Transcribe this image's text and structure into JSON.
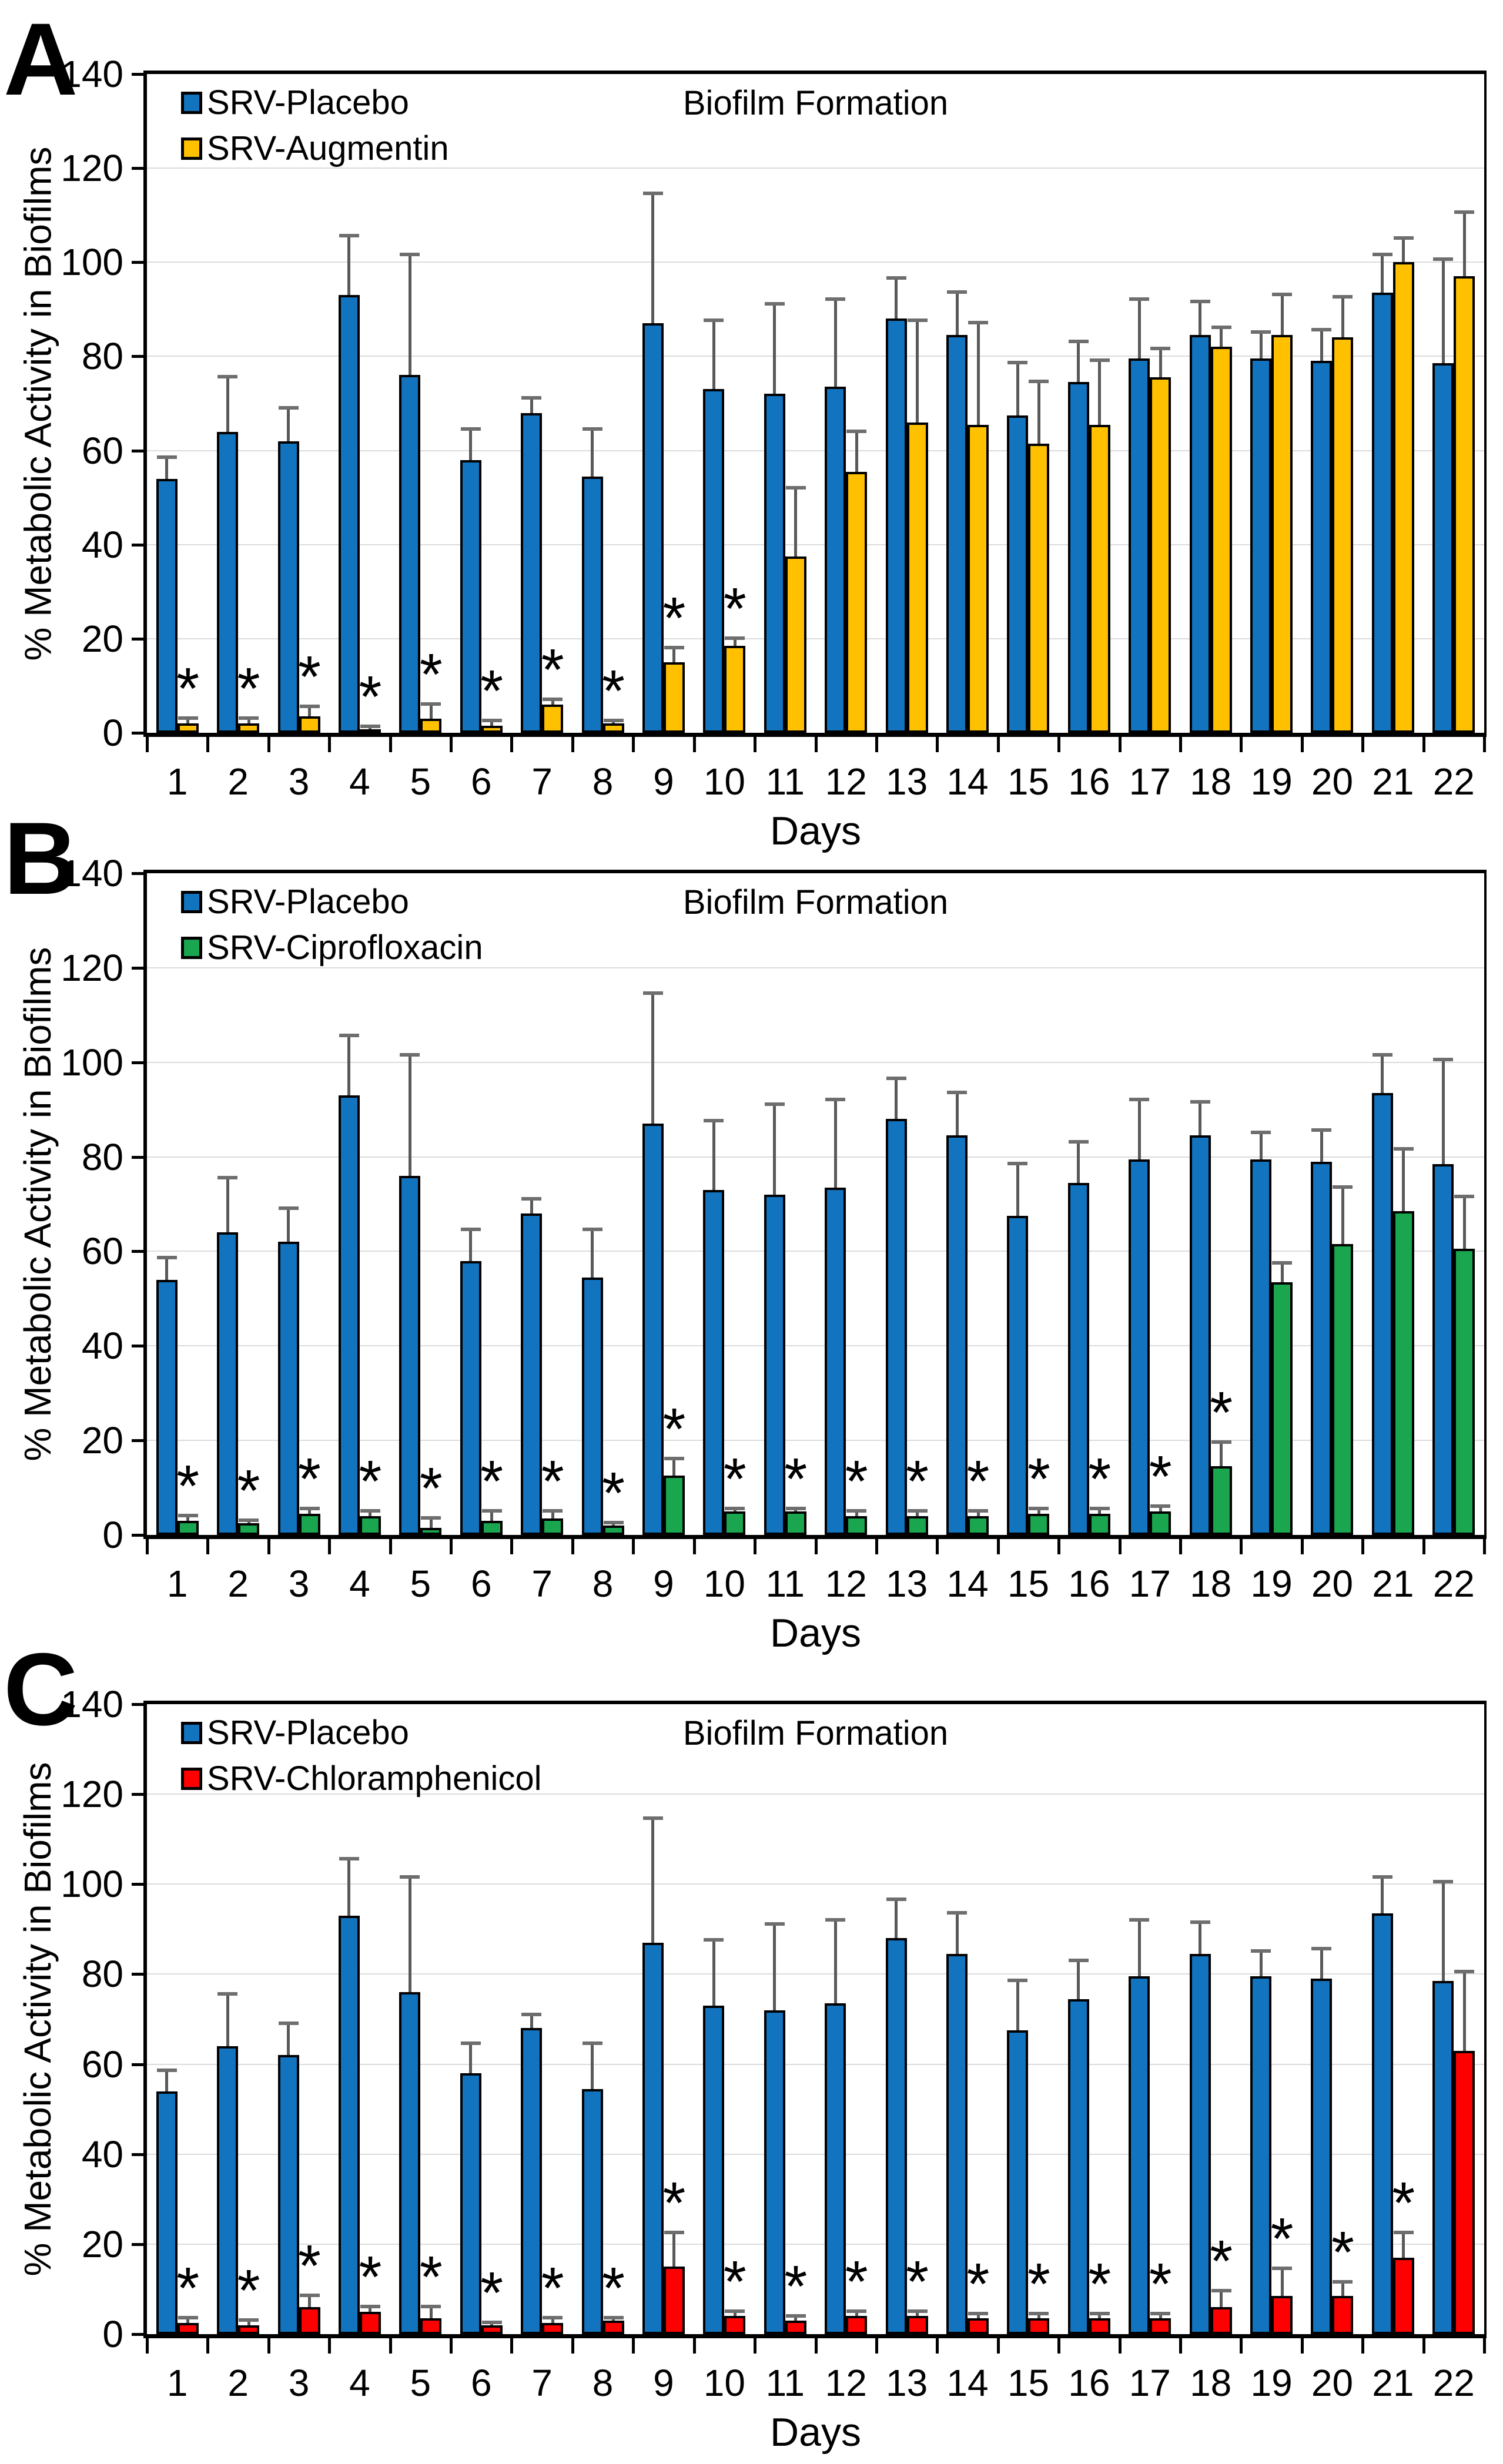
{
  "figure": {
    "panel_letters": [
      "A",
      "B",
      "C"
    ],
    "significance_marker": "*",
    "colors": {
      "placebo_blue": "#1273BE",
      "augmentin_yellow": "#FFC000",
      "ciprofloxacin_green": "#19A64F",
      "chloramphenicol_red": "#FE0000",
      "error_bar": "#595959",
      "gridline": "#DCDCDC",
      "axis": "#000000"
    }
  },
  "chart_data": [
    {
      "panel": "A",
      "type": "bar",
      "title": "Biofilm Formation",
      "xlabel": "Days",
      "ylabel": "% Metabolic Activity in Biofilms",
      "ylim": [
        0,
        140
      ],
      "ytick_step": 20,
      "grid": true,
      "legend_position": "top-left",
      "categories": [
        "1",
        "2",
        "3",
        "4",
        "5",
        "6",
        "7",
        "8",
        "9",
        "10",
        "11",
        "12",
        "13",
        "14",
        "15",
        "16",
        "17",
        "18",
        "19",
        "20",
        "21",
        "22"
      ],
      "series": [
        {
          "name": "SRV-Placebo",
          "color": "#1273BE",
          "values": [
            54,
            64,
            62,
            93,
            76,
            58,
            68,
            54.5,
            87,
            73,
            72,
            73.5,
            88,
            84.5,
            67.5,
            74.5,
            79.5,
            84.5,
            79.5,
            79,
            93.5,
            78.5
          ],
          "errors_plus": [
            5,
            12,
            7.5,
            13,
            26,
            7,
            3.5,
            10.5,
            28,
            15,
            19.5,
            19,
            9,
            9.5,
            11.5,
            9,
            13,
            7.5,
            6,
            7,
            8.5,
            22.5
          ],
          "significant_days": []
        },
        {
          "name": "SRV-Augmentin",
          "color": "#FFC000",
          "values": [
            2,
            2,
            3.5,
            0.7,
            3,
            1.5,
            6,
            2,
            15,
            18.5,
            37.5,
            55.5,
            66,
            65.5,
            61.5,
            65.5,
            75.5,
            82,
            84.5,
            84,
            100,
            97
          ],
          "errors_plus": [
            1.5,
            1.5,
            2.5,
            1,
            3.5,
            1.5,
            1.5,
            1,
            3.5,
            2,
            15,
            9,
            22,
            22,
            13.5,
            14,
            6.5,
            4.5,
            9,
            9,
            5.5,
            14
          ],
          "significant_days": [
            1,
            2,
            3,
            4,
            5,
            6,
            7,
            8,
            9,
            10
          ]
        }
      ]
    },
    {
      "panel": "B",
      "type": "bar",
      "title": "Biofilm Formation",
      "xlabel": "Days",
      "ylabel": "% Metabolic Activity in Biofilms",
      "ylim": [
        0,
        140
      ],
      "ytick_step": 20,
      "grid": true,
      "legend_position": "top-left",
      "categories": [
        "1",
        "2",
        "3",
        "4",
        "5",
        "6",
        "7",
        "8",
        "9",
        "10",
        "11",
        "12",
        "13",
        "14",
        "15",
        "16",
        "17",
        "18",
        "19",
        "20",
        "21",
        "22"
      ],
      "series": [
        {
          "name": "SRV-Placebo",
          "color": "#1273BE",
          "values": [
            54,
            64,
            62,
            93,
            76,
            58,
            68,
            54.5,
            87,
            73,
            72,
            73.5,
            88,
            84.5,
            67.5,
            74.5,
            79.5,
            84.5,
            79.5,
            79,
            93.5,
            78.5
          ],
          "errors_plus": [
            5,
            12,
            7.5,
            13,
            26,
            7,
            3.5,
            10.5,
            28,
            15,
            19.5,
            19,
            9,
            9.5,
            11.5,
            9,
            13,
            7.5,
            6,
            7,
            8.5,
            22.5
          ],
          "significant_days": []
        },
        {
          "name": "SRV-Ciprofloxacin",
          "color": "#19A64F",
          "values": [
            3,
            2.5,
            4.5,
            4,
            1.5,
            3,
            3.5,
            2,
            12.5,
            5,
            5,
            4,
            4,
            4,
            4.5,
            4.5,
            5,
            14.5,
            53.5,
            61.5,
            68.5,
            60.5
          ],
          "errors_plus": [
            1.5,
            1,
            1.5,
            1.5,
            2.5,
            2.5,
            2,
            1,
            4,
            1,
            1,
            1.5,
            1.5,
            1.5,
            1.5,
            1.5,
            1.5,
            5.5,
            4.5,
            12.5,
            13.5,
            11.5
          ],
          "significant_days": [
            1,
            2,
            3,
            4,
            5,
            6,
            7,
            8,
            9,
            10,
            11,
            12,
            13,
            14,
            15,
            16,
            17,
            18
          ]
        }
      ]
    },
    {
      "panel": "C",
      "type": "bar",
      "title": "Biofilm Formation",
      "xlabel": "Days",
      "ylabel": "% Metabolic Activity in Biofilms",
      "ylim": [
        0,
        140
      ],
      "ytick_step": 20,
      "grid": true,
      "legend_position": "top-left",
      "categories": [
        "1",
        "2",
        "3",
        "4",
        "5",
        "6",
        "7",
        "8",
        "9",
        "10",
        "11",
        "12",
        "13",
        "14",
        "15",
        "16",
        "17",
        "18",
        "19",
        "20",
        "21",
        "22"
      ],
      "series": [
        {
          "name": "SRV-Placebo",
          "color": "#1273BE",
          "values": [
            54,
            64,
            62,
            93,
            76,
            58,
            68,
            54.5,
            87,
            73,
            72,
            73.5,
            88,
            84.5,
            67.5,
            74.5,
            79.5,
            84.5,
            79.5,
            79,
            93.5,
            78.5
          ],
          "errors_plus": [
            5,
            12,
            7.5,
            13,
            26,
            7,
            3.5,
            10.5,
            28,
            15,
            19.5,
            19,
            9,
            9.5,
            11.5,
            9,
            13,
            7.5,
            6,
            7,
            8.5,
            22.5
          ],
          "significant_days": []
        },
        {
          "name": "SRV-Chloramphenicol",
          "color": "#FE0000",
          "values": [
            2.5,
            2,
            6,
            5,
            3.5,
            2,
            2.5,
            3,
            15,
            4,
            3,
            4,
            4,
            3.5,
            3.5,
            3.5,
            3.5,
            6,
            8.5,
            8.5,
            17,
            63
          ],
          "errors_plus": [
            1.5,
            1.5,
            3,
            1.5,
            3,
            1,
            1.5,
            1,
            8,
            1.5,
            1.5,
            1.5,
            1.5,
            1.5,
            1.5,
            1.5,
            1.5,
            4,
            6.5,
            3.5,
            6,
            18
          ],
          "significant_days": [
            1,
            2,
            3,
            4,
            5,
            6,
            7,
            8,
            9,
            10,
            11,
            12,
            13,
            14,
            15,
            16,
            17,
            18,
            19,
            20,
            21
          ]
        }
      ]
    }
  ]
}
